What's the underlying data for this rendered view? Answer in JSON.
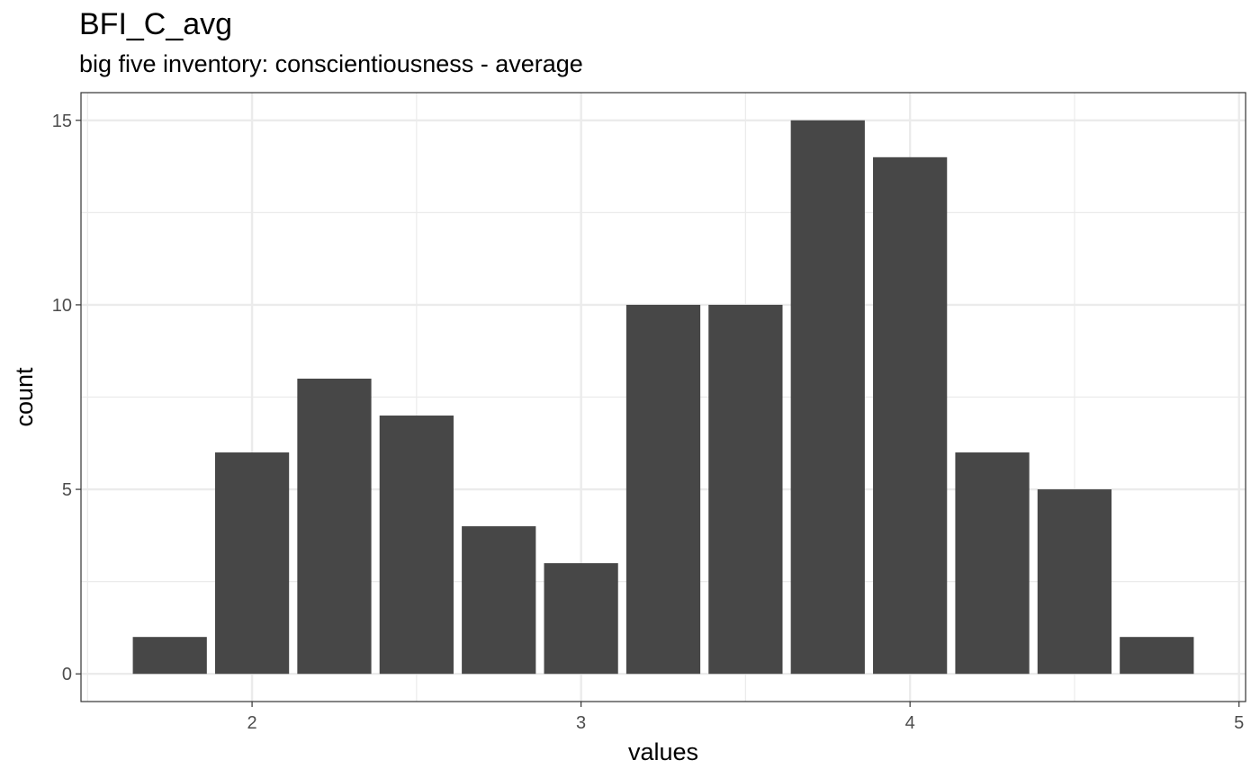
{
  "chart_data": {
    "type": "bar",
    "title": "BFI_C_avg",
    "subtitle": "big five inventory: conscientiousness - average",
    "xlabel": "values",
    "ylabel": "count",
    "x": [
      1.75,
      2.0,
      2.25,
      2.5,
      2.75,
      3.0,
      3.25,
      3.5,
      3.75,
      4.0,
      4.25,
      4.5,
      4.75
    ],
    "values": [
      1,
      6,
      8,
      7,
      4,
      3,
      10,
      10,
      15,
      14,
      6,
      5,
      1
    ],
    "bin_width": 0.25,
    "xlim": [
      1.48,
      5.02
    ],
    "ylim": [
      -0.75,
      15.75
    ],
    "x_ticks": [
      2,
      3,
      4,
      5
    ],
    "x_tick_labels": [
      "2",
      "3",
      "4",
      "5"
    ],
    "y_ticks": [
      0,
      5,
      10,
      15
    ],
    "y_tick_labels": [
      "0",
      "5",
      "10",
      "15"
    ],
    "grid": true,
    "bar_color": "#474747",
    "grid_color": "#ebebeb",
    "panel_border_color": "#333333",
    "tick_label_color": "#4d4d4d"
  }
}
